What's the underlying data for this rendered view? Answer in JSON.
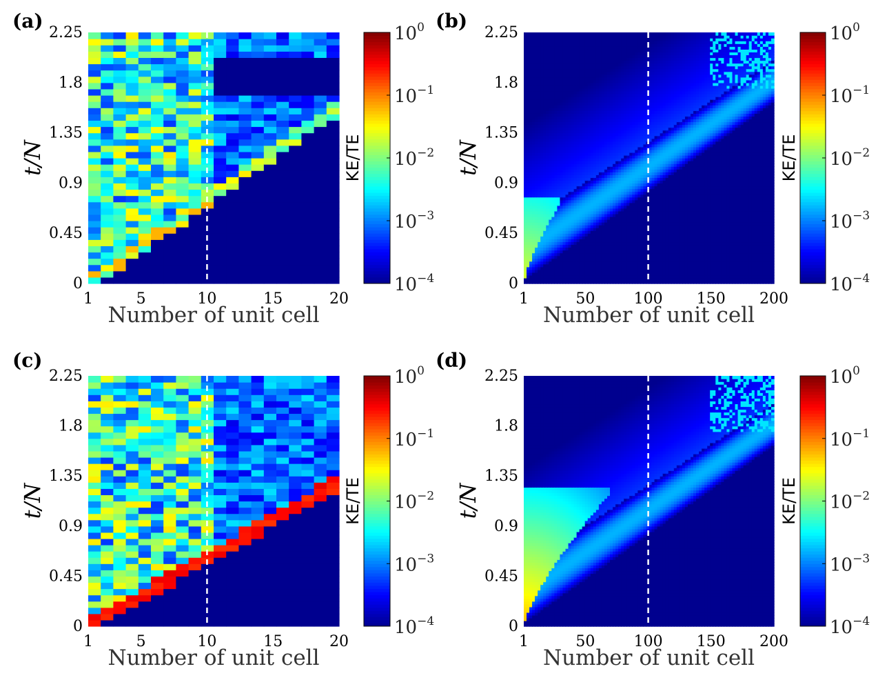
{
  "chart_data": [
    {
      "type": "heatmap",
      "panel": "(a)",
      "xlabel": "Number of unit cell",
      "ylabel": "t/N",
      "colorbar_label": "KE/TE",
      "x_ticks": [
        "1",
        "5",
        "10",
        "15",
        "20"
      ],
      "x_tick_values": [
        1,
        5,
        10,
        15,
        20
      ],
      "xlim": [
        1,
        20
      ],
      "y_ticks": [
        "0",
        "0.45",
        "0.9",
        "1.35",
        "1.8",
        "2.25"
      ],
      "ylim": [
        0,
        2.25
      ],
      "colorbar_ticks": [
        "10^-4",
        "10^-3",
        "10^-2",
        "10^-1",
        "10^0"
      ],
      "color_scale": "log",
      "clim": [
        0.0001,
        1
      ],
      "dashed_line_x": 10,
      "model": "discrete",
      "front_speed_slope": 0.08,
      "peak_log10": -1.3
    },
    {
      "type": "heatmap",
      "panel": "(b)",
      "xlabel": "Number of unit cell",
      "ylabel": "t/N",
      "colorbar_label": "KE/TE",
      "x_ticks": [
        "1",
        "50",
        "100",
        "150",
        "200"
      ],
      "x_tick_values": [
        1,
        50,
        100,
        150,
        200
      ],
      "xlim": [
        1,
        200
      ],
      "y_ticks": [
        "0",
        "0.45",
        "0.9",
        "1.35",
        "1.8",
        "2.25"
      ],
      "ylim": [
        0,
        2.25
      ],
      "colorbar_ticks": [
        "10^-4",
        "10^-3",
        "10^-2",
        "10^-1",
        "10^0"
      ],
      "color_scale": "log",
      "clim": [
        0.0001,
        1
      ],
      "dashed_line_x": 100,
      "model": "continuous",
      "source_front_end_x": 30,
      "source_front_end_y": 0.72,
      "peak_log10": -1.6
    },
    {
      "type": "heatmap",
      "panel": "(c)",
      "xlabel": "Number of unit cell",
      "ylabel": "t/N",
      "colorbar_label": "KE/TE",
      "x_ticks": [
        "1",
        "5",
        "10",
        "15",
        "20"
      ],
      "x_tick_values": [
        1,
        5,
        10,
        15,
        20
      ],
      "xlim": [
        1,
        20
      ],
      "y_ticks": [
        "0",
        "0.45",
        "0.9",
        "1.35",
        "1.8",
        "2.25"
      ],
      "ylim": [
        0,
        2.25
      ],
      "colorbar_ticks": [
        "10^-4",
        "10^-3",
        "10^-2",
        "10^-1",
        "10^0"
      ],
      "color_scale": "log",
      "clim": [
        0.0001,
        1
      ],
      "dashed_line_x": 10,
      "model": "discrete",
      "front_speed_slope": 0.065,
      "peak_log10": -0.4
    },
    {
      "type": "heatmap",
      "panel": "(d)",
      "xlabel": "Number of unit cell",
      "ylabel": "t/N",
      "colorbar_label": "KE/TE",
      "x_ticks": [
        "1",
        "50",
        "100",
        "150",
        "200"
      ],
      "x_tick_values": [
        1,
        50,
        100,
        150,
        200
      ],
      "xlim": [
        1,
        200
      ],
      "y_ticks": [
        "0",
        "0.45",
        "0.9",
        "1.35",
        "1.8",
        "2.25"
      ],
      "ylim": [
        0,
        2.25
      ],
      "colorbar_ticks": [
        "10^-4",
        "10^-3",
        "10^-2",
        "10^-1",
        "10^0"
      ],
      "color_scale": "log",
      "clim": [
        0.0001,
        1
      ],
      "dashed_line_x": 100,
      "model": "continuous",
      "source_front_end_x": 70,
      "source_front_end_y": 1.2,
      "peak_log10": -1.2
    }
  ],
  "colormap": [
    "#00008f",
    "#0000ff",
    "#0080ff",
    "#00ffff",
    "#80ff80",
    "#ffff00",
    "#ff8000",
    "#ff0000",
    "#800000"
  ]
}
